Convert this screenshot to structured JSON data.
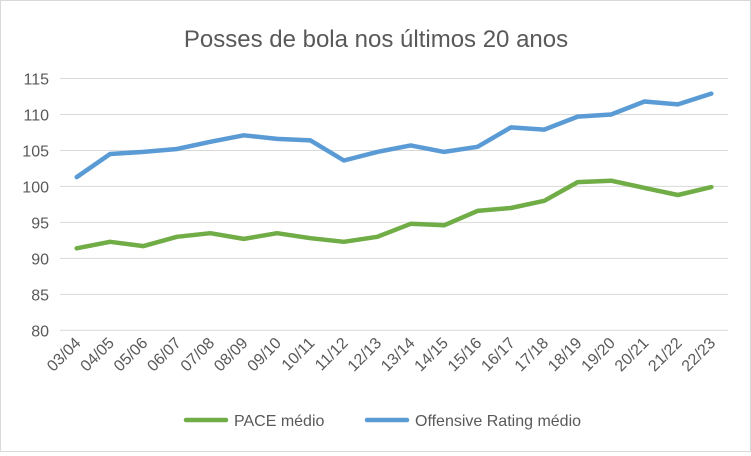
{
  "chart_data": {
    "type": "line",
    "title": "Posses de bola nos últimos 20 anos",
    "xlabel": "",
    "ylabel": "",
    "ylim": [
      80,
      115
    ],
    "yticks": [
      80,
      85,
      90,
      95,
      100,
      105,
      110,
      115
    ],
    "grid": true,
    "legend": "bottom",
    "categories": [
      "03/04",
      "04/05",
      "05/06",
      "06/07",
      "07/08",
      "08/09",
      "09/10",
      "10/11",
      "11/12",
      "12/13",
      "13/14",
      "14/15",
      "15/16",
      "16/17",
      "17/18",
      "18/19",
      "19/20",
      "20/21",
      "21/22",
      "22/23"
    ],
    "series": [
      {
        "name": "PACE médio",
        "color": "#70AD47",
        "values": [
          91.4,
          92.3,
          91.7,
          93.0,
          93.5,
          92.7,
          93.5,
          92.8,
          92.3,
          93.0,
          94.8,
          94.6,
          96.6,
          97.0,
          98.0,
          100.6,
          100.8,
          99.8,
          98.8,
          99.9
        ]
      },
      {
        "name": "Offensive Rating médio",
        "color": "#5B9BD5",
        "values": [
          101.3,
          104.5,
          104.8,
          105.2,
          106.2,
          107.1,
          106.6,
          106.4,
          103.6,
          104.8,
          105.7,
          104.8,
          105.5,
          108.2,
          107.9,
          109.7,
          110.0,
          111.8,
          111.4,
          112.9
        ]
      }
    ]
  }
}
